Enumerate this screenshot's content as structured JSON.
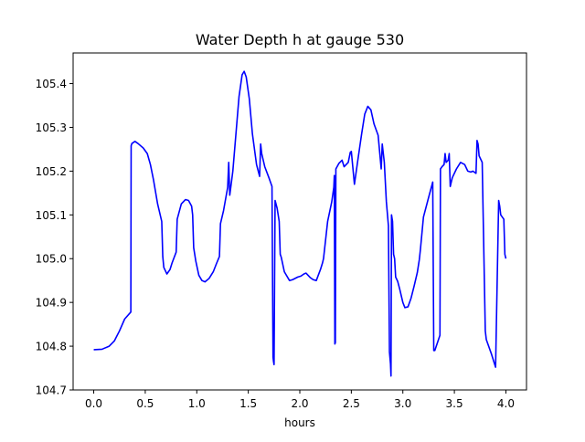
{
  "chart_data": {
    "type": "line",
    "title": "Water Depth h at gauge 530",
    "xlabel": "hours",
    "ylabel": "",
    "xlim": [
      -0.2,
      4.2
    ],
    "ylim": [
      104.7,
      105.47
    ],
    "xticks": [
      0.0,
      0.5,
      1.0,
      1.5,
      2.0,
      2.5,
      3.0,
      3.5,
      4.0
    ],
    "xtick_labels": [
      "0.0",
      "0.5",
      "1.0",
      "1.5",
      "2.0",
      "2.5",
      "3.0",
      "3.5",
      "4.0"
    ],
    "yticks": [
      104.7,
      104.8,
      104.9,
      105.0,
      105.1,
      105.2,
      105.3,
      105.4
    ],
    "ytick_labels": [
      "104.7",
      "104.8",
      "104.9",
      "105.0",
      "105.1",
      "105.2",
      "105.3",
      "105.4"
    ],
    "grid": false,
    "series": [
      {
        "color": "#0000ff",
        "x": [
          0.0,
          0.08,
          0.15,
          0.2,
          0.25,
          0.3,
          0.36,
          0.363,
          0.37,
          0.4,
          0.43,
          0.48,
          0.52,
          0.55,
          0.58,
          0.62,
          0.66,
          0.67,
          0.68,
          0.71,
          0.74,
          0.76,
          0.8,
          0.81,
          0.85,
          0.89,
          0.92,
          0.95,
          0.96,
          0.97,
          0.99,
          1.02,
          1.05,
          1.08,
          1.12,
          1.16,
          1.19,
          1.22,
          1.23,
          1.26,
          1.3,
          1.31,
          1.32,
          1.35,
          1.38,
          1.41,
          1.44,
          1.46,
          1.48,
          1.51,
          1.54,
          1.58,
          1.61,
          1.62,
          1.63,
          1.66,
          1.7,
          1.73,
          1.74,
          1.745,
          1.75,
          1.76,
          1.78,
          1.8,
          1.81,
          1.82,
          1.85,
          1.9,
          1.93,
          1.98,
          2.01,
          2.04,
          2.06,
          2.1,
          2.13,
          2.16,
          2.2,
          2.22,
          2.23,
          2.27,
          2.31,
          2.33,
          2.335,
          2.34,
          2.345,
          2.35,
          2.38,
          2.41,
          2.43,
          2.47,
          2.49,
          2.5,
          2.53,
          2.56,
          2.6,
          2.63,
          2.66,
          2.69,
          2.72,
          2.76,
          2.79,
          2.8,
          2.82,
          2.84,
          2.86,
          2.87,
          2.88,
          2.885,
          2.89,
          2.9,
          2.91,
          2.92,
          2.93,
          2.95,
          2.97,
          3.0,
          3.02,
          3.05,
          3.08,
          3.11,
          3.14,
          3.16,
          3.17,
          3.2,
          3.25,
          3.29,
          3.3,
          3.31,
          3.36,
          3.365,
          3.38,
          3.4,
          3.41,
          3.42,
          3.44,
          3.45,
          3.46,
          3.48,
          3.52,
          3.56,
          3.6,
          3.63,
          3.66,
          3.68,
          3.71,
          3.72,
          3.73,
          3.74,
          3.77,
          3.8,
          3.81,
          3.86,
          3.9,
          3.93,
          3.94,
          3.95,
          3.98,
          3.99,
          4.0
        ],
        "y": [
          104.792,
          104.793,
          104.8,
          104.812,
          104.835,
          104.862,
          104.878,
          105.258,
          105.263,
          105.268,
          105.263,
          105.253,
          105.24,
          105.215,
          105.18,
          105.125,
          105.085,
          105.005,
          104.98,
          104.965,
          104.975,
          104.99,
          105.015,
          105.09,
          105.125,
          105.135,
          105.133,
          105.12,
          105.1,
          105.025,
          104.995,
          104.962,
          104.95,
          104.947,
          104.955,
          104.97,
          104.988,
          105.005,
          105.08,
          105.11,
          105.163,
          105.22,
          105.145,
          105.2,
          105.285,
          105.37,
          105.42,
          105.428,
          105.415,
          105.365,
          105.285,
          105.215,
          105.188,
          105.262,
          105.24,
          105.21,
          105.185,
          105.165,
          104.775,
          104.765,
          104.758,
          105.133,
          105.115,
          105.085,
          105.01,
          105.003,
          104.97,
          104.95,
          104.952,
          104.958,
          104.96,
          104.965,
          104.967,
          104.957,
          104.952,
          104.95,
          104.975,
          104.99,
          105.0,
          105.085,
          105.13,
          105.163,
          105.19,
          104.805,
          104.808,
          105.205,
          105.218,
          105.225,
          105.21,
          105.22,
          105.243,
          105.245,
          105.17,
          105.22,
          105.285,
          105.33,
          105.348,
          105.34,
          105.308,
          105.282,
          105.205,
          105.262,
          105.22,
          105.13,
          105.075,
          104.787,
          104.76,
          104.732,
          105.1,
          105.085,
          105.01,
          105.0,
          104.958,
          104.948,
          104.93,
          104.9,
          104.888,
          104.89,
          104.91,
          104.938,
          104.968,
          104.998,
          105.02,
          105.095,
          105.14,
          105.175,
          104.79,
          104.79,
          104.825,
          105.205,
          105.21,
          105.215,
          105.24,
          105.22,
          105.225,
          105.24,
          105.165,
          105.185,
          105.205,
          105.22,
          105.215,
          105.2,
          105.198,
          105.2,
          105.195,
          105.27,
          105.262,
          105.235,
          105.22,
          104.835,
          104.815,
          104.782,
          104.752,
          105.133,
          105.12,
          105.1,
          105.09,
          105.01,
          105.0
        ]
      }
    ]
  }
}
